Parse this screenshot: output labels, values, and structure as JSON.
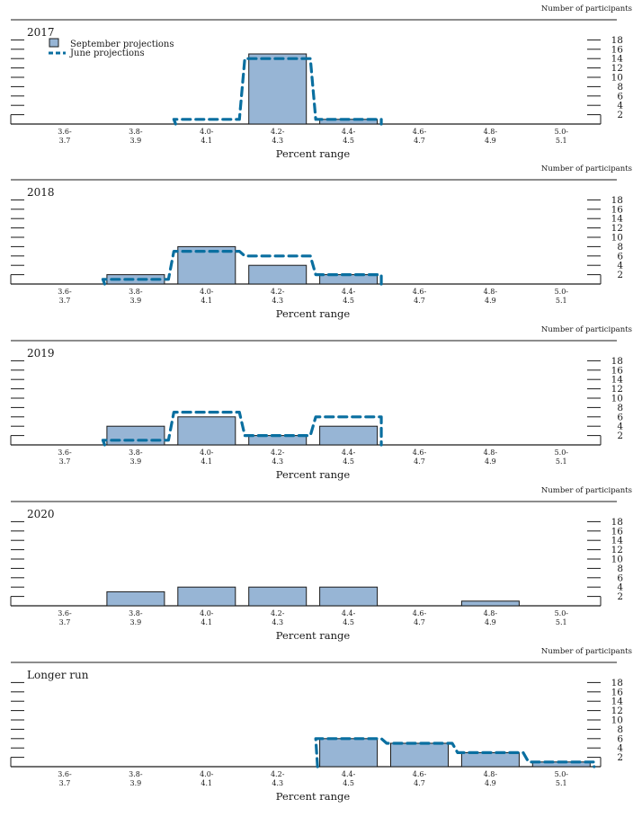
{
  "chart_data": [
    {
      "type": "bar",
      "title": "2017",
      "ylabel": "Number of participants",
      "xlabel": "Percent range",
      "ylim": [
        0,
        18
      ],
      "yticks": [
        2,
        4,
        6,
        8,
        10,
        12,
        14,
        16,
        18
      ],
      "categories": [
        "3.6-3.7",
        "3.8-3.9",
        "4.0-4.1",
        "4.2-4.3",
        "4.4-4.5",
        "4.6-4.7",
        "4.8-4.9",
        "5.0-5.1"
      ],
      "series": [
        {
          "name": "September projections",
          "style": "bar",
          "values": [
            0,
            0,
            0,
            15,
            1,
            0,
            0,
            0
          ]
        },
        {
          "name": "June projections",
          "style": "dashed-step",
          "values": [
            0,
            0,
            1,
            14,
            1,
            0,
            0,
            0
          ]
        }
      ],
      "legend": {
        "position": "top-left",
        "entries": [
          "September projections",
          "June projections"
        ]
      }
    },
    {
      "type": "bar",
      "title": "2018",
      "ylabel": "Number of participants",
      "xlabel": "Percent range",
      "ylim": [
        0,
        18
      ],
      "yticks": [
        2,
        4,
        6,
        8,
        10,
        12,
        14,
        16,
        18
      ],
      "categories": [
        "3.6-3.7",
        "3.8-3.9",
        "4.0-4.1",
        "4.2-4.3",
        "4.4-4.5",
        "4.6-4.7",
        "4.8-4.9",
        "5.0-5.1"
      ],
      "series": [
        {
          "name": "September projections",
          "style": "bar",
          "values": [
            0,
            2,
            8,
            4,
            2,
            0,
            0,
            0
          ]
        },
        {
          "name": "June projections",
          "style": "dashed-step",
          "values": [
            0,
            1,
            7,
            6,
            2,
            0,
            0,
            0
          ]
        }
      ]
    },
    {
      "type": "bar",
      "title": "2019",
      "ylabel": "Number of participants",
      "xlabel": "Percent range",
      "ylim": [
        0,
        18
      ],
      "yticks": [
        2,
        4,
        6,
        8,
        10,
        12,
        14,
        16,
        18
      ],
      "categories": [
        "3.6-3.7",
        "3.8-3.9",
        "4.0-4.1",
        "4.2-4.3",
        "4.4-4.5",
        "4.6-4.7",
        "4.8-4.9",
        "5.0-5.1"
      ],
      "series": [
        {
          "name": "September projections",
          "style": "bar",
          "values": [
            0,
            4,
            6,
            2,
            4,
            0,
            0,
            0
          ]
        },
        {
          "name": "June projections",
          "style": "dashed-step",
          "values": [
            0,
            1,
            7,
            2,
            6,
            0,
            0,
            0
          ]
        }
      ]
    },
    {
      "type": "bar",
      "title": "2020",
      "ylabel": "Number of participants",
      "xlabel": "Percent range",
      "ylim": [
        0,
        18
      ],
      "yticks": [
        2,
        4,
        6,
        8,
        10,
        12,
        14,
        16,
        18
      ],
      "categories": [
        "3.6-3.7",
        "3.8-3.9",
        "4.0-4.1",
        "4.2-4.3",
        "4.4-4.5",
        "4.6-4.7",
        "4.8-4.9",
        "5.0-5.1"
      ],
      "series": [
        {
          "name": "September projections",
          "style": "bar",
          "values": [
            0,
            3,
            4,
            4,
            4,
            0,
            1,
            0
          ]
        }
      ]
    },
    {
      "type": "bar",
      "title": "Longer run",
      "ylabel": "Number of participants",
      "xlabel": "Percent range",
      "ylim": [
        0,
        18
      ],
      "yticks": [
        2,
        4,
        6,
        8,
        10,
        12,
        14,
        16,
        18
      ],
      "categories": [
        "3.6-3.7",
        "3.8-3.9",
        "4.0-4.1",
        "4.2-4.3",
        "4.4-4.5",
        "4.6-4.7",
        "4.8-4.9",
        "5.0-5.1"
      ],
      "series": [
        {
          "name": "September projections",
          "style": "bar",
          "values": [
            0,
            0,
            0,
            0,
            6,
            5,
            3,
            1
          ]
        },
        {
          "name": "June projections",
          "style": "dashed-step",
          "values": [
            0,
            0,
            0,
            0,
            6,
            5,
            3,
            1
          ]
        }
      ]
    }
  ],
  "colors": {
    "bar_fill": "#97b5d5",
    "bar_stroke": "#1a1a1a",
    "june_line": "#0a6fa0",
    "axis": "#1a1a1a"
  }
}
